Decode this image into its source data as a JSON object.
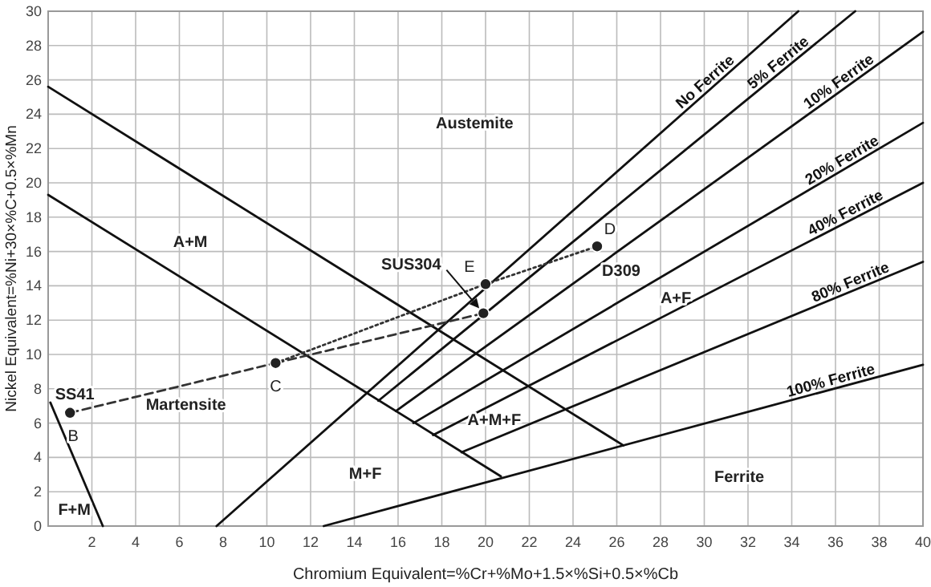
{
  "chart_data": {
    "type": "line",
    "xlabel": "Chromium Equivalent=%Cr+%Mo+1.5×%Si+0.5×%Cb",
    "ylabel": "Nickel Equivalent=%Ni+30×%C+0.5×%Mn",
    "xlim": [
      0,
      40
    ],
    "ylim": [
      0,
      30
    ],
    "xticks": [
      {
        "value": 0,
        "label": null
      },
      2,
      4,
      6,
      8,
      10,
      12,
      14,
      16,
      18,
      20,
      22,
      24,
      26,
      28,
      30,
      32,
      34,
      36,
      38,
      40
    ],
    "yticks": [
      0,
      2,
      4,
      6,
      8,
      10,
      12,
      14,
      16,
      18,
      20,
      22,
      24,
      26,
      28,
      30
    ],
    "grid": true,
    "legend": false,
    "marker": "none",
    "line_style": "solid",
    "series": [
      {
        "color": "#111111",
        "x": [
          0,
          26.3
        ],
        "values": [
          25.6,
          4.7
        ]
      },
      {
        "color": "#111111",
        "x": [
          0,
          20.7
        ],
        "values": [
          19.3,
          2.9
        ]
      },
      {
        "color": "#111111",
        "x": [
          0.1,
          2.5
        ],
        "values": [
          7.2,
          0
        ]
      },
      {
        "name": "No Ferrite",
        "color": "#111111",
        "x": [
          7.7,
          34.3
        ],
        "values": [
          0,
          30
        ]
      },
      {
        "name": "5% Ferrite",
        "color": "#111111",
        "x": [
          15.1,
          36.9
        ],
        "values": [
          7.3,
          30
        ]
      },
      {
        "name": "10% Ferrite",
        "color": "#111111",
        "x": [
          15.9,
          40
        ],
        "values": [
          6.7,
          28.8
        ]
      },
      {
        "name": "20% Ferrite",
        "color": "#111111",
        "x": [
          16.7,
          40
        ],
        "values": [
          6.0,
          23.5
        ]
      },
      {
        "name": "40% Ferrite",
        "color": "#111111",
        "x": [
          17.6,
          40
        ],
        "values": [
          5.3,
          20.0
        ]
      },
      {
        "name": "80% Ferrite",
        "color": "#111111",
        "x": [
          18.9,
          40
        ],
        "values": [
          4.3,
          15.4
        ]
      },
      {
        "name": "100% Ferrite",
        "color": "#111111",
        "x": [
          12.6,
          40
        ],
        "values": [
          0,
          9.4
        ]
      },
      {
        "color": "#333333",
        "line_style": "dashed",
        "x": [
          1.0,
          10.4
        ],
        "values": [
          6.6,
          9.5
        ]
      },
      {
        "color": "#333333",
        "line_style": "dashed",
        "x": [
          10.4,
          19.9
        ],
        "values": [
          9.5,
          12.4
        ]
      },
      {
        "color": "#333333",
        "line_style": "dotted",
        "x": [
          10.4,
          20.0
        ],
        "values": [
          9.5,
          14.1
        ]
      },
      {
        "color": "#333333",
        "line_style": "dotted",
        "x": [
          20.0,
          25.1
        ],
        "values": [
          14.1,
          16.3
        ]
      },
      {
        "type": "scatter",
        "marker": "circle",
        "color": "#222222",
        "x": [
          1.0,
          10.4,
          25.1,
          20.0,
          19.9
        ],
        "values": [
          6.6,
          9.5,
          16.3,
          14.1,
          12.4
        ]
      }
    ],
    "annotations": [
      "Austemite",
      "A+M",
      "Martensite",
      "M+F",
      "A+M+F",
      "A+F",
      "Ferrite",
      "F+M",
      {
        "text": "SS41",
        "x": 1.0,
        "y": 6.6
      },
      {
        "text": "B",
        "x": 1.0,
        "y": 6.6
      },
      {
        "text": "C",
        "x": 10.4,
        "y": 9.5
      },
      {
        "text": "D",
        "x": 25.1,
        "y": 16.3
      },
      {
        "text": "D309",
        "x": 25.1,
        "y": 16.3
      },
      {
        "text": "E",
        "x": 20.0,
        "y": 14.1
      },
      "SUS304"
    ]
  }
}
